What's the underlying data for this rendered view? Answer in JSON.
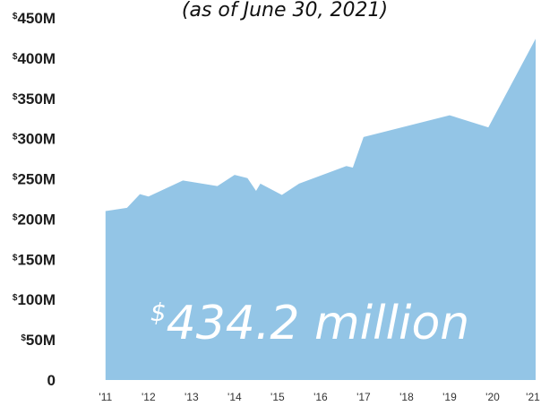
{
  "chart_data": {
    "type": "area",
    "subtitle": "(as of June 30, 2021)",
    "annotation": {
      "currency_symbol": "$",
      "text": "434.2 million"
    },
    "x": [
      2011.0,
      2011.5,
      2011.8,
      2012.0,
      2012.8,
      2013.6,
      2014.0,
      2014.3,
      2014.5,
      2014.6,
      2015.1,
      2015.5,
      2016.6,
      2016.75,
      2017.0,
      2019.0,
      2019.9,
      2021.0
    ],
    "y": [
      210,
      214,
      231,
      228,
      248,
      241,
      255,
      251,
      235,
      244,
      230,
      244,
      266,
      264,
      302,
      329,
      314,
      424
    ],
    "xlim": [
      2010.9,
      2021.0
    ],
    "ylim": [
      0,
      450
    ],
    "color": "#93c5e6",
    "xticks": [
      {
        "value": 2011,
        "label": "'11"
      },
      {
        "value": 2012,
        "label": "'12"
      },
      {
        "value": 2013,
        "label": "'13"
      },
      {
        "value": 2014,
        "label": "'14"
      },
      {
        "value": 2015,
        "label": "'15"
      },
      {
        "value": 2016,
        "label": "'16"
      },
      {
        "value": 2017,
        "label": "'17"
      },
      {
        "value": 2018,
        "label": "'18"
      },
      {
        "value": 2019,
        "label": "'19"
      },
      {
        "value": 2020,
        "label": "'20"
      },
      {
        "value": 2021,
        "label": "'21"
      }
    ],
    "yticks": [
      {
        "value": 450,
        "sup": "$",
        "label": "450M"
      },
      {
        "value": 400,
        "sup": "$",
        "label": "400M"
      },
      {
        "value": 350,
        "sup": "$",
        "label": "350M"
      },
      {
        "value": 300,
        "sup": "$",
        "label": "300M"
      },
      {
        "value": 250,
        "sup": "$",
        "label": "250M"
      },
      {
        "value": 200,
        "sup": "$",
        "label": "200M"
      },
      {
        "value": 150,
        "sup": "$",
        "label": "150M"
      },
      {
        "value": 100,
        "sup": "$",
        "label": "100M"
      },
      {
        "value": 50,
        "sup": "$",
        "label": "50M"
      },
      {
        "value": 0,
        "sup": "",
        "label": "0"
      }
    ]
  }
}
